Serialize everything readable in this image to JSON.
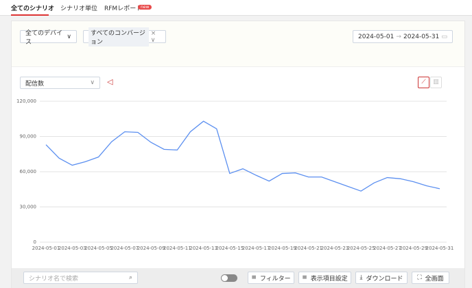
{
  "tabs": {
    "items": [
      "全てのシナリオ",
      "シナリオ単位",
      "RFMレポート"
    ],
    "badge": "new"
  },
  "filters": {
    "device": "全てのデバイス",
    "conversion": "すべてのコンバージョン",
    "start_date": "2024-05-01",
    "end_date": "2024-05-31",
    "metric": "配信数"
  },
  "chart_data": {
    "type": "line",
    "categories": [
      "2024-05-01",
      null,
      "2024-05-03",
      null,
      "2024-05-05",
      null,
      "2024-05-07",
      null,
      "2024-05-09",
      null,
      "2024-05-11",
      null,
      "2024-05-13",
      null,
      "2024-05-15",
      null,
      "2024-05-17",
      null,
      "2024-05-19",
      null,
      "2024-05-21",
      null,
      "2024-05-23",
      null,
      "2024-05-25",
      null,
      "2024-05-27",
      null,
      "2024-05-29",
      null,
      "2024-05-31"
    ],
    "values": [
      83000,
      71500,
      65500,
      68500,
      72500,
      85500,
      94000,
      93500,
      85000,
      79000,
      78500,
      94000,
      103000,
      96500,
      58500,
      62500,
      57000,
      52000,
      58500,
      59000,
      55500,
      55500,
      51500,
      47500,
      43500,
      50500,
      55000,
      54000,
      51500,
      48000,
      45500
    ],
    "color": "#5b8ff0",
    "ylim": [
      0,
      120000
    ],
    "yticks": [
      0,
      {
        "value": 30000,
        "label": "30,000"
      },
      {
        "value": 60000,
        "label": "60,000"
      },
      {
        "value": 90000,
        "label": "90,000"
      },
      {
        "value": 120000,
        "label": "120,000"
      }
    ],
    "grid": true
  },
  "toolbar": {
    "search_placeholder": "シナリオ名で検索",
    "buttons": [
      "フィルター",
      "表示項目設定",
      "ダウンロード",
      "全画面"
    ]
  }
}
